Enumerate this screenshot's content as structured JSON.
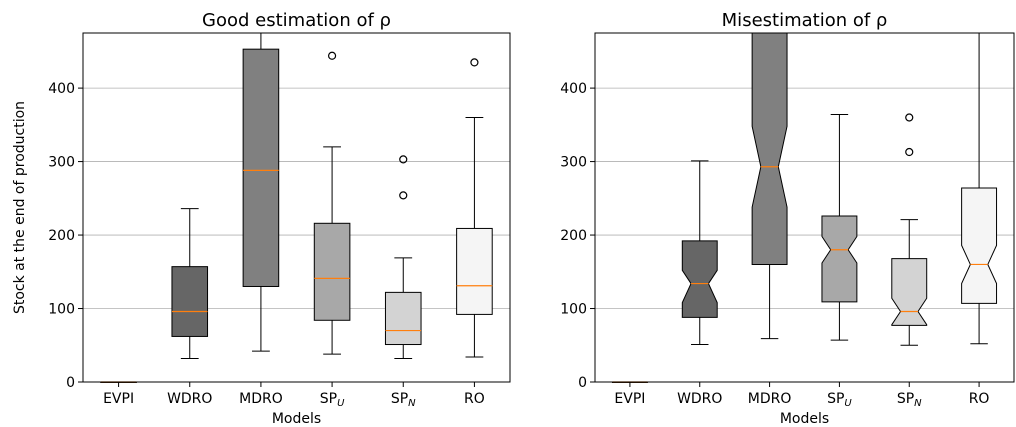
{
  "chart_data": [
    {
      "type": "box",
      "title": "Good estimation of ρ",
      "xlabel": "Models",
      "ylabel": "Stock at the end of production",
      "ylim": [
        0,
        475
      ],
      "yticks": [
        0,
        100,
        200,
        300,
        400
      ],
      "grid": "horizontal",
      "notched": false,
      "categories": [
        {
          "base": "EVPI",
          "sub": ""
        },
        {
          "base": "WDRO",
          "sub": ""
        },
        {
          "base": "MDRO",
          "sub": ""
        },
        {
          "base": "SP",
          "sub": "U"
        },
        {
          "base": "SP",
          "sub": "N"
        },
        {
          "base": "RO",
          "sub": ""
        }
      ],
      "boxes": [
        {
          "whislo": 0,
          "q1": 0,
          "med": 0,
          "q3": 0,
          "whishi": 0,
          "fliers": [],
          "color": "#000000"
        },
        {
          "whislo": 32,
          "q1": 62,
          "med": 96,
          "q3": 157,
          "whishi": 236,
          "fliers": [],
          "color": "#666666"
        },
        {
          "whislo": 42,
          "q1": 130,
          "med": 288,
          "q3": 453,
          "whishi": 475,
          "fliers": [],
          "color": "#808080"
        },
        {
          "whislo": 38,
          "q1": 84,
          "med": 141,
          "q3": 216,
          "whishi": 320,
          "fliers": [
            444
          ],
          "color": "#a8a8a8"
        },
        {
          "whislo": 32,
          "q1": 51,
          "med": 70,
          "q3": 122,
          "whishi": 169,
          "fliers": [
            254,
            303
          ],
          "color": "#d3d3d3"
        },
        {
          "whislo": 34,
          "q1": 92,
          "med": 131,
          "q3": 209,
          "whishi": 360,
          "fliers": [
            435
          ],
          "color": "#f5f5f5"
        }
      ]
    },
    {
      "type": "box",
      "title": "Misestimation of  ρ",
      "xlabel": "Models",
      "ylabel": "",
      "ylim": [
        0,
        475
      ],
      "yticks": [
        0,
        100,
        200,
        300,
        400
      ],
      "grid": "horizontal",
      "notched": true,
      "categories": [
        {
          "base": "EVPI",
          "sub": ""
        },
        {
          "base": "WDRO",
          "sub": ""
        },
        {
          "base": "MDRO",
          "sub": ""
        },
        {
          "base": "SP",
          "sub": "U"
        },
        {
          "base": "SP",
          "sub": "N"
        },
        {
          "base": "RO",
          "sub": ""
        }
      ],
      "boxes": [
        {
          "whislo": 0,
          "q1": 0,
          "med": 0,
          "q3": 0,
          "whishi": 0,
          "notch": [
            0,
            0
          ],
          "fliers": [],
          "color": "#000000"
        },
        {
          "whislo": 51,
          "q1": 88,
          "med": 134,
          "q3": 192,
          "whishi": 301,
          "notch": [
            108,
            152
          ],
          "fliers": [],
          "color": "#666666"
        },
        {
          "whislo": 59,
          "q1": 160,
          "med": 293,
          "q3": 475,
          "whishi": 475,
          "notch": [
            238,
            348
          ],
          "fliers": [],
          "color": "#808080"
        },
        {
          "whislo": 57,
          "q1": 109,
          "med": 180,
          "q3": 226,
          "whishi": 364,
          "notch": [
            162,
            198
          ],
          "fliers": [],
          "color": "#a8a8a8"
        },
        {
          "whislo": 50,
          "q1": 77,
          "med": 96,
          "q3": 168,
          "whishi": 221,
          "notch": [
            78,
            114
          ],
          "fliers": [
            313,
            360
          ],
          "color": "#d3d3d3"
        },
        {
          "whislo": 52,
          "q1": 107,
          "med": 160,
          "q3": 264,
          "whishi": 475,
          "notch": [
            134,
            186
          ],
          "fliers": [],
          "color": "#f5f5f5"
        }
      ]
    }
  ]
}
